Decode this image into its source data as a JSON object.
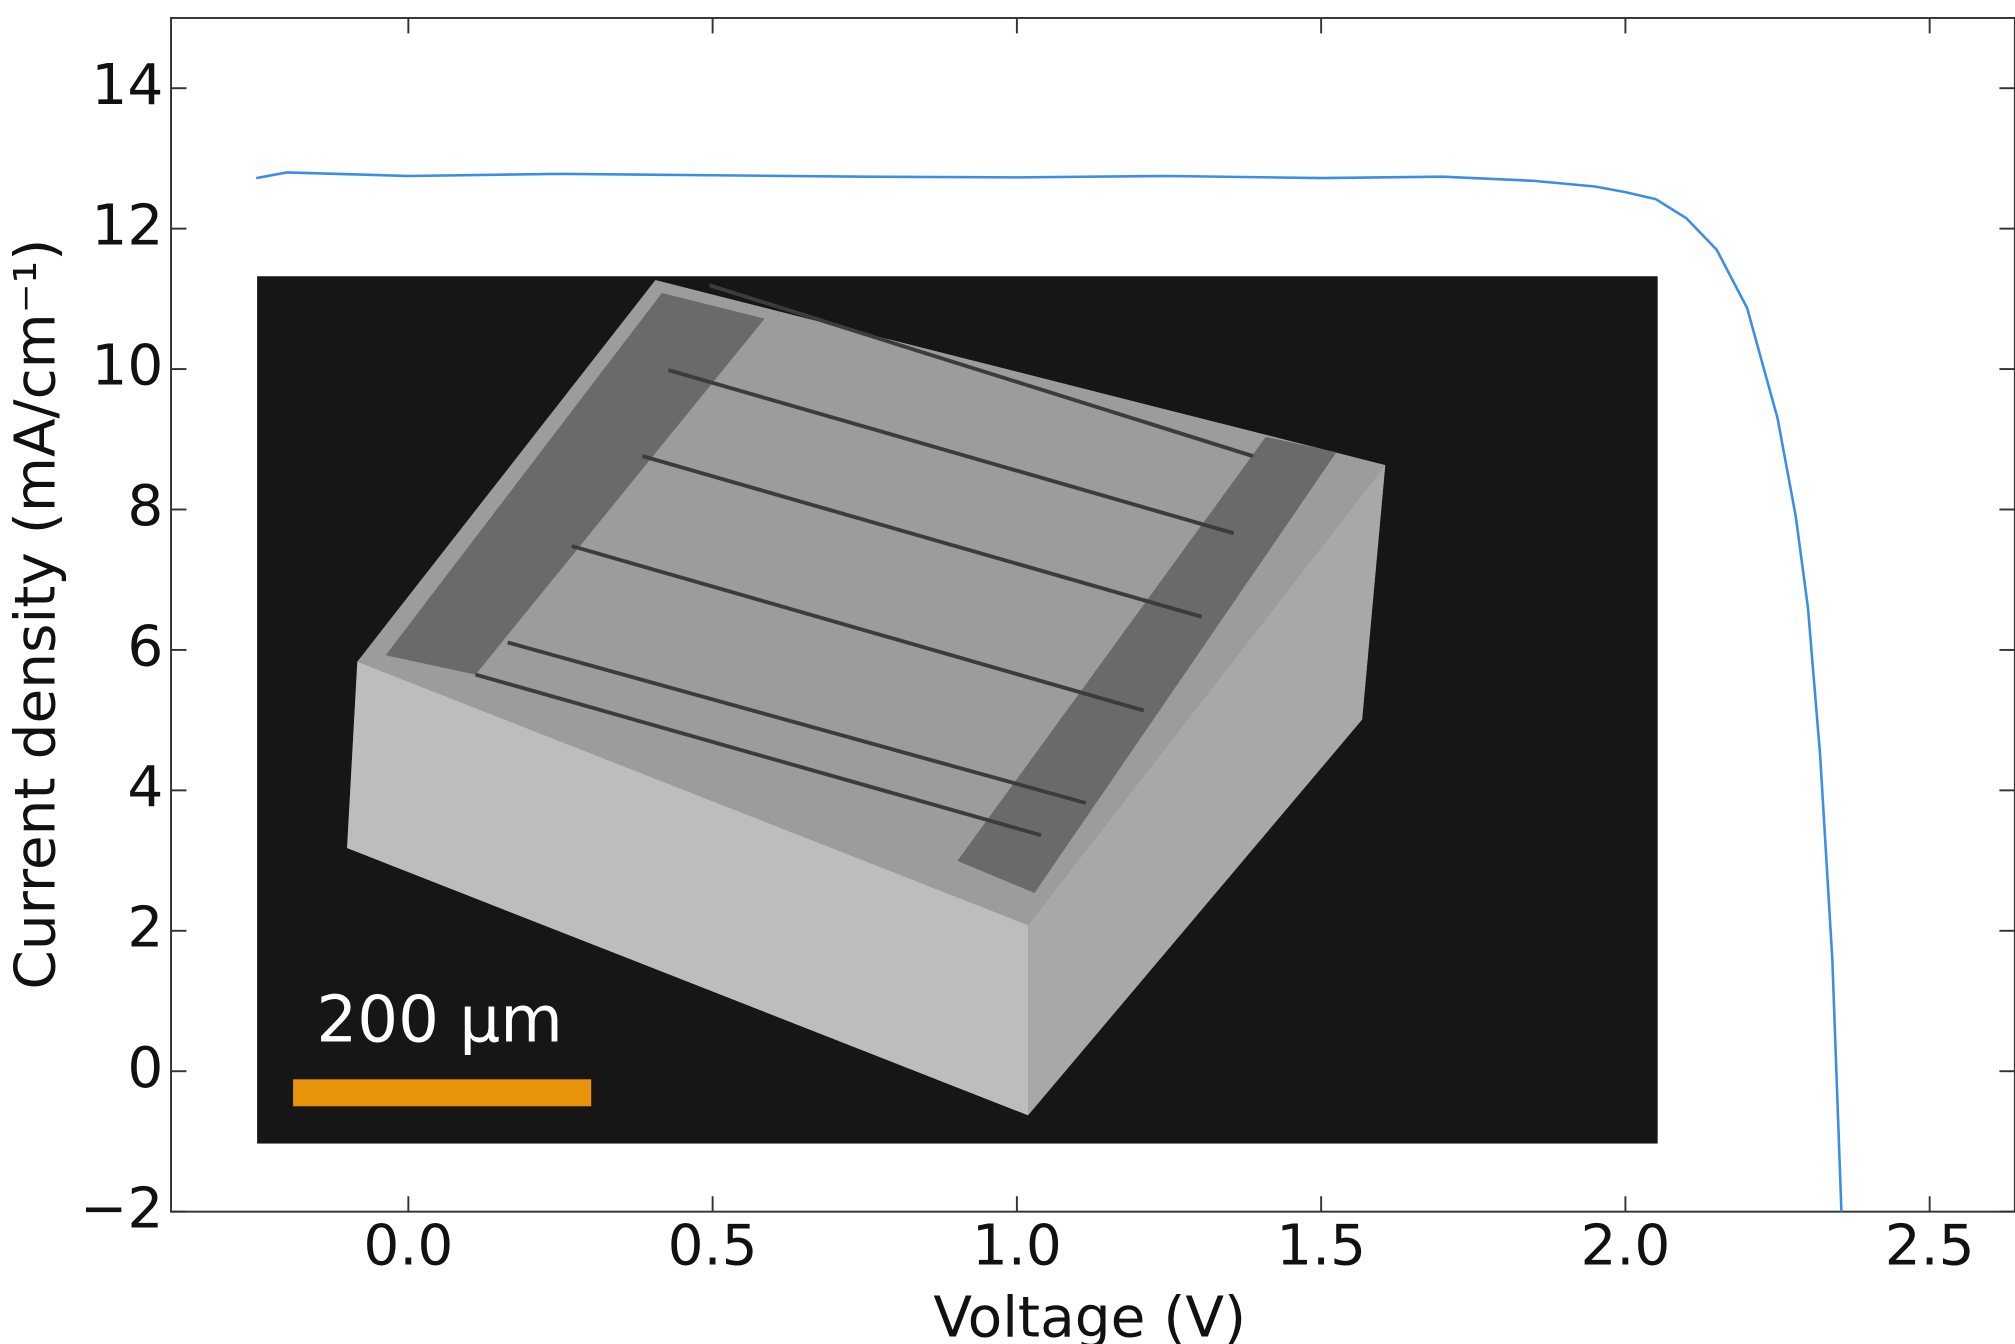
{
  "chart_data": {
    "type": "line",
    "xlabel": "Voltage (V)",
    "ylabel": "Current density (mA/cm⁻¹)",
    "x": [
      -0.25,
      -0.2,
      0,
      0.25,
      0.5,
      0.75,
      1.0,
      1.25,
      1.5,
      1.7,
      1.85,
      1.95,
      2.0,
      2.05,
      2.1,
      2.15,
      2.2,
      2.25,
      2.28,
      2.3,
      2.32,
      2.34,
      2.355
    ],
    "series": [
      {
        "color": "#3a8ee6",
        "values": [
          12.72,
          12.8,
          12.75,
          12.78,
          12.76,
          12.74,
          12.73,
          12.75,
          12.72,
          12.74,
          12.68,
          12.6,
          12.52,
          12.42,
          12.15,
          11.7,
          10.87,
          9.3,
          7.9,
          6.6,
          4.5,
          1.6,
          -2.0
        ]
      }
    ],
    "xlim": [
      -0.39,
      2.64
    ],
    "ylim": [
      -2,
      15
    ],
    "xticks": [
      {
        "value": 0,
        "label": "0.0"
      },
      0.5,
      {
        "value": 1,
        "label": "1.0"
      },
      1.5,
      {
        "value": 2,
        "label": "2.0"
      },
      2.5
    ],
    "yticks": [
      {
        "value": -2,
        "label": "−2"
      },
      0,
      2,
      4,
      6,
      8,
      10,
      12,
      14
    ],
    "inset": {
      "scale_label": "200 µm"
    }
  }
}
